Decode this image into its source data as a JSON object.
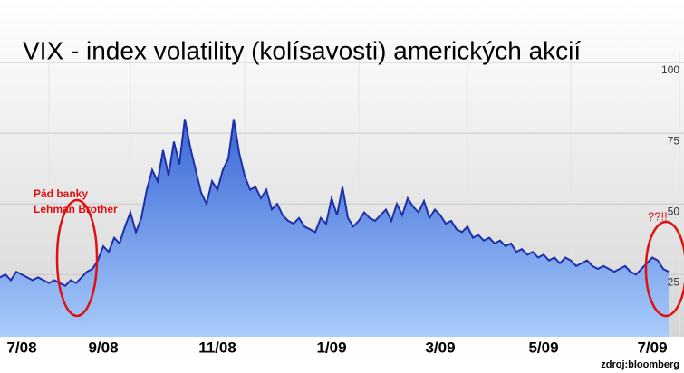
{
  "chart_data": {
    "type": "area",
    "title": "VIX - index volatility (kolísavosti) amerických akcií",
    "annotations": [
      "Pád banky",
      "Lehman Brother",
      "??!!"
    ],
    "source": "zdroj:bloomberg",
    "categories": [
      null,
      null,
      null,
      null,
      "7/08",
      null,
      null,
      null,
      null,
      null,
      null,
      null,
      null,
      null,
      null,
      null,
      null,
      null,
      null,
      "9/08",
      null,
      null,
      null,
      null,
      null,
      null,
      null,
      null,
      null,
      null,
      null,
      null,
      null,
      null,
      null,
      null,
      null,
      null,
      null,
      null,
      "11/08",
      null,
      null,
      null,
      null,
      null,
      null,
      null,
      null,
      null,
      null,
      null,
      null,
      null,
      null,
      null,
      null,
      null,
      null,
      null,
      null,
      "1/09",
      null,
      null,
      null,
      null,
      null,
      null,
      null,
      null,
      null,
      null,
      null,
      null,
      null,
      null,
      null,
      null,
      null,
      null,
      null,
      "3/09",
      null,
      null,
      null,
      null,
      null,
      null,
      null,
      null,
      null,
      null,
      null,
      null,
      null,
      null,
      null,
      null,
      null,
      null,
      "5/09",
      null,
      null,
      null,
      null,
      null,
      null,
      null,
      null,
      null,
      null,
      null,
      null,
      null,
      null,
      null,
      null,
      null,
      null,
      null,
      "7/09",
      null,
      null,
      null
    ],
    "values": [
      24,
      25,
      23,
      26,
      25,
      24,
      23,
      24,
      23,
      22,
      23,
      22,
      21,
      23,
      22,
      24,
      26,
      27,
      30,
      35,
      33,
      38,
      36,
      42,
      47,
      40,
      45,
      55,
      62,
      58,
      69,
      60,
      72,
      64,
      80,
      70,
      62,
      54,
      50,
      58,
      55,
      62,
      66,
      80,
      68,
      60,
      55,
      56,
      52,
      55,
      48,
      50,
      46,
      44,
      43,
      45,
      42,
      41,
      40,
      45,
      43,
      52,
      46,
      56,
      45,
      42,
      44,
      47,
      45,
      44,
      46,
      48,
      44,
      50,
      46,
      52,
      49,
      47,
      51,
      45,
      48,
      46,
      43,
      44,
      41,
      40,
      42,
      38,
      39,
      37,
      38,
      36,
      37,
      35,
      36,
      33,
      34,
      32,
      33,
      31,
      32,
      30,
      31,
      29,
      31,
      30,
      28,
      29,
      30,
      28,
      27,
      28,
      27,
      26,
      27,
      28,
      26,
      25,
      27,
      29,
      31,
      30,
      27,
      26
    ],
    "color": "#1c2fa8",
    "ylim": [
      3,
      100
    ],
    "yticks": [
      25,
      50,
      75,
      100
    ],
    "grid": true
  }
}
